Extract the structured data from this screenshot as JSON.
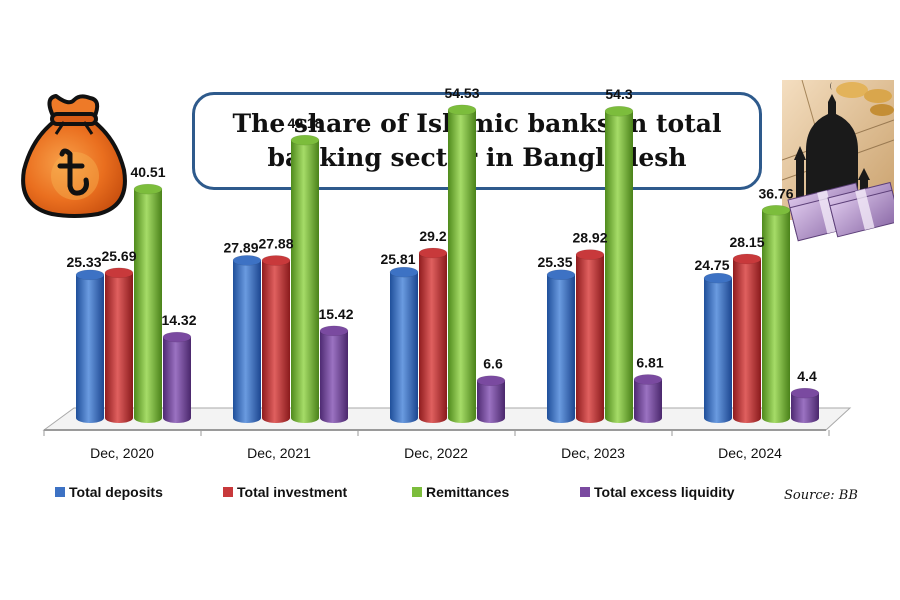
{
  "title_lines": [
    "The share of Islamic banks in total",
    "banking sector in Bangladesh"
  ],
  "source": "Source: BB",
  "colors": {
    "Total deposits": "#3d72c4",
    "Total investment": "#c8393b",
    "Remittances": "#7cbd3c",
    "Total excess liquidity": "#7a4aa0"
  },
  "icons": [
    "taka-money-bag-icon",
    "mosque-and-banknotes-image"
  ],
  "chart_data": {
    "type": "bar",
    "categories": [
      "Dec, 2020",
      "Dec, 2021",
      "Dec, 2022",
      "Dec, 2023",
      "Dec, 2024"
    ],
    "series": [
      {
        "name": "Total deposits",
        "values": [
          25.33,
          27.89,
          25.81,
          25.35,
          24.75
        ]
      },
      {
        "name": "Total investment",
        "values": [
          25.69,
          27.88,
          29.2,
          28.92,
          28.15
        ]
      },
      {
        "name": "Remittances",
        "values": [
          40.51,
          49.18,
          54.53,
          54.3,
          36.76
        ]
      },
      {
        "name": "Total excess liquidity",
        "values": [
          14.32,
          15.42,
          6.6,
          6.81,
          4.4
        ]
      }
    ],
    "value_labels": [
      [
        "25.33",
        "27.89",
        "25.81",
        "25.35",
        "24.75"
      ],
      [
        "25.69",
        "27.88",
        "29.2",
        "28.92",
        "28.15"
      ],
      [
        "40.51",
        "49.18",
        "54.53",
        "54.3",
        "36.76"
      ],
      [
        "14.32",
        "15.42",
        "6.6",
        "6.81",
        "4.4"
      ]
    ],
    "ylim": [
      0,
      60
    ],
    "grid": false,
    "legend_position": "bottom",
    "style": "3d cylinder"
  }
}
